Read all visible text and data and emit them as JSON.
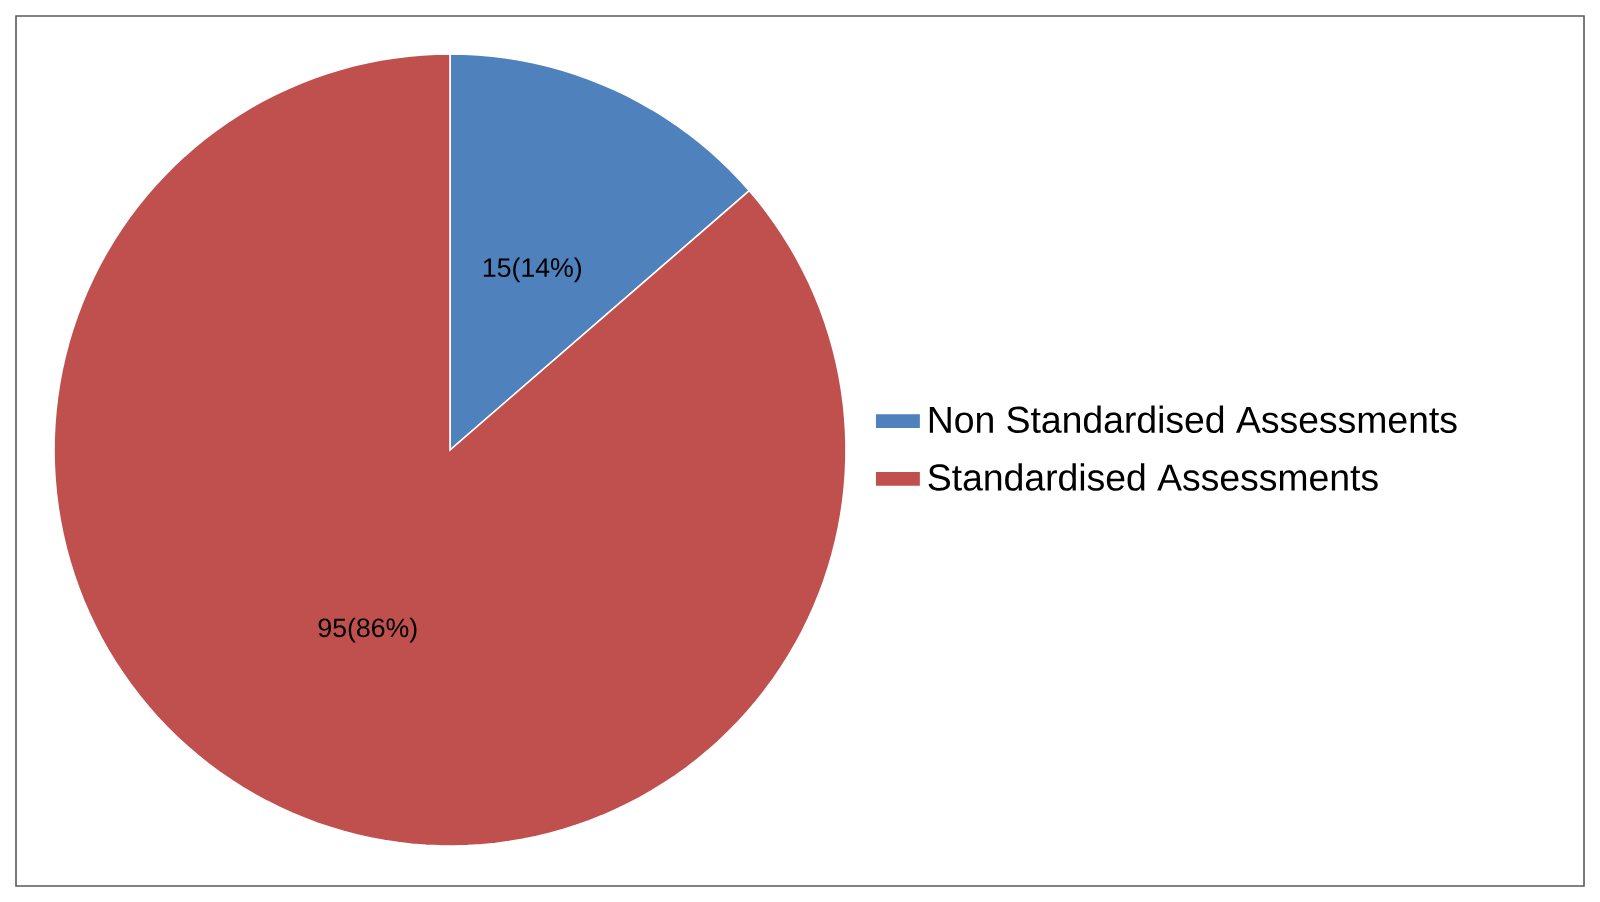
{
  "chart_data": {
    "type": "pie",
    "categories": [
      "Non Standardised Assessments",
      "Standardised Assessments"
    ],
    "values": [
      15,
      95
    ],
    "colors": [
      "#4f81bd",
      "#c0504d"
    ],
    "value_labels": [
      "15(14%)",
      "95(86%)"
    ],
    "legend": "right"
  }
}
